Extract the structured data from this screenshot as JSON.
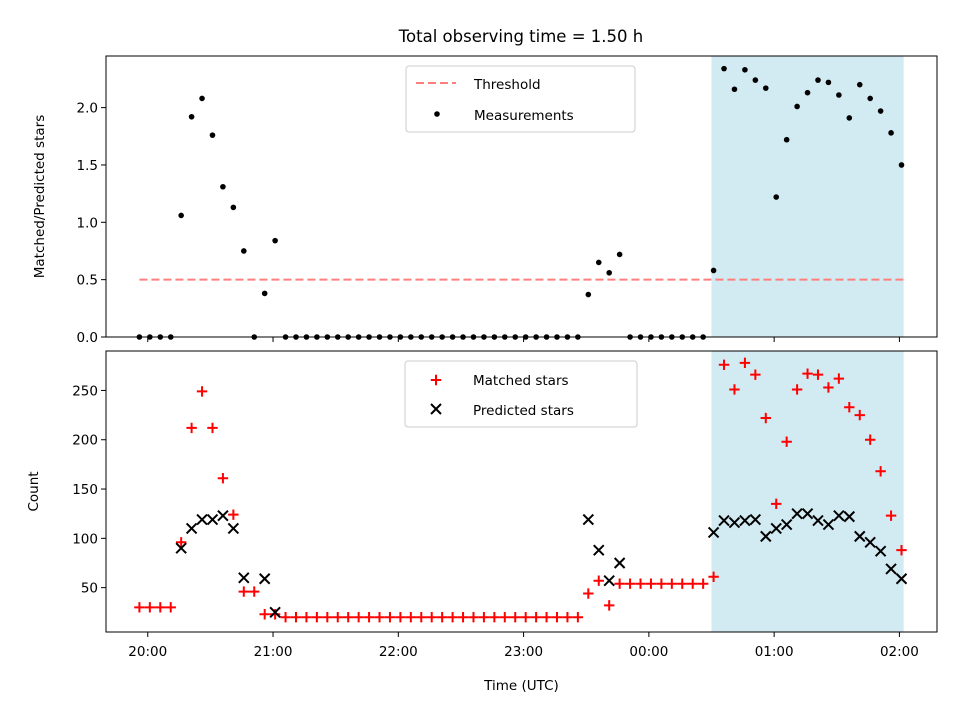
{
  "title": "Total observing time = 1.50 h",
  "colors": {
    "threshold": "#ff7f7f",
    "measurement": "#000000",
    "matched": "#ff0000",
    "predicted": "#000000",
    "shade": "#add8e6"
  },
  "chart_data": [
    {
      "type": "scatter",
      "ylabel": "Matched/Predicted stars",
      "xlim": [
        "19:40",
        "02:18"
      ],
      "ylim": [
        0,
        2.45
      ],
      "yticks": [
        "0.0",
        "0.5",
        "1.0",
        "1.5",
        "2.0"
      ],
      "shaded_region": [
        "00:30",
        "02:02"
      ],
      "legend": {
        "position": "top-center",
        "entries": [
          {
            "name": "Threshold",
            "style": "dashed-line"
          },
          {
            "name": "Measurements",
            "style": "dot"
          }
        ]
      },
      "threshold": {
        "name": "Threshold",
        "x": [
          "19:56",
          "02:02"
        ],
        "y": 0.5
      },
      "series": [
        {
          "name": "Measurements",
          "points": [
            [
              "19:56",
              0.0
            ],
            [
              "20:01",
              0.0
            ],
            [
              "20:06",
              0.0
            ],
            [
              "20:11",
              0.0
            ],
            [
              "20:16",
              1.06
            ],
            [
              "20:21",
              1.92
            ],
            [
              "20:26",
              2.08
            ],
            [
              "20:31",
              1.76
            ],
            [
              "20:36",
              1.31
            ],
            [
              "20:41",
              1.13
            ],
            [
              "20:46",
              0.75
            ],
            [
              "20:51",
              0.0
            ],
            [
              "20:56",
              0.38
            ],
            [
              "21:01",
              0.84
            ],
            [
              "21:06",
              0.0
            ],
            [
              "21:11",
              0.0
            ],
            [
              "21:16",
              0.0
            ],
            [
              "21:21",
              0.0
            ],
            [
              "21:26",
              0.0
            ],
            [
              "21:31",
              0.0
            ],
            [
              "21:36",
              0.0
            ],
            [
              "21:41",
              0.0
            ],
            [
              "21:46",
              0.0
            ],
            [
              "21:51",
              0.0
            ],
            [
              "21:56",
              0.0
            ],
            [
              "22:01",
              0.0
            ],
            [
              "22:06",
              0.0
            ],
            [
              "22:11",
              0.0
            ],
            [
              "22:16",
              0.0
            ],
            [
              "22:21",
              0.0
            ],
            [
              "22:26",
              0.0
            ],
            [
              "22:31",
              0.0
            ],
            [
              "22:36",
              0.0
            ],
            [
              "22:41",
              0.0
            ],
            [
              "22:46",
              0.0
            ],
            [
              "22:51",
              0.0
            ],
            [
              "22:56",
              0.0
            ],
            [
              "23:01",
              0.0
            ],
            [
              "23:06",
              0.0
            ],
            [
              "23:11",
              0.0
            ],
            [
              "23:16",
              0.0
            ],
            [
              "23:21",
              0.0
            ],
            [
              "23:26",
              0.0
            ],
            [
              "23:31",
              0.37
            ],
            [
              "23:36",
              0.65
            ],
            [
              "23:41",
              0.56
            ],
            [
              "23:46",
              0.72
            ],
            [
              "23:51",
              0.0
            ],
            [
              "23:56",
              0.0
            ],
            [
              "00:01",
              0.0
            ],
            [
              "00:06",
              0.0
            ],
            [
              "00:11",
              0.0
            ],
            [
              "00:16",
              0.0
            ],
            [
              "00:21",
              0.0
            ],
            [
              "00:26",
              0.0
            ],
            [
              "00:31",
              0.58
            ],
            [
              "00:36",
              2.34
            ],
            [
              "00:41",
              2.16
            ],
            [
              "00:46",
              2.33
            ],
            [
              "00:51",
              2.24
            ],
            [
              "00:56",
              2.17
            ],
            [
              "01:01",
              1.22
            ],
            [
              "01:06",
              1.72
            ],
            [
              "01:11",
              2.01
            ],
            [
              "01:16",
              2.13
            ],
            [
              "01:21",
              2.24
            ],
            [
              "01:26",
              2.22
            ],
            [
              "01:31",
              2.11
            ],
            [
              "01:36",
              1.91
            ],
            [
              "01:41",
              2.2
            ],
            [
              "01:46",
              2.08
            ],
            [
              "01:51",
              1.97
            ],
            [
              "01:56",
              1.78
            ],
            [
              "02:01",
              1.5
            ]
          ]
        }
      ]
    },
    {
      "type": "scatter",
      "xlabel": "Time (UTC)",
      "ylabel": "Count",
      "xlim": [
        "19:40",
        "02:18"
      ],
      "ylim": [
        5,
        290
      ],
      "xticks": [
        "20:00",
        "21:00",
        "22:00",
        "23:00",
        "00:00",
        "01:00",
        "02:00"
      ],
      "yticks": [
        "50",
        "100",
        "150",
        "200",
        "250"
      ],
      "shaded_region": [
        "00:30",
        "02:02"
      ],
      "legend": {
        "position": "top-center",
        "entries": [
          {
            "name": "Matched stars",
            "style": "plus"
          },
          {
            "name": "Predicted stars",
            "style": "cross"
          }
        ]
      },
      "series": [
        {
          "name": "Matched stars",
          "points": [
            [
              "19:56",
              30
            ],
            [
              "20:01",
              30
            ],
            [
              "20:06",
              30
            ],
            [
              "20:11",
              30
            ],
            [
              "20:16",
              96
            ],
            [
              "20:21",
              212
            ],
            [
              "20:26",
              249
            ],
            [
              "20:31",
              212
            ],
            [
              "20:36",
              161
            ],
            [
              "20:41",
              124
            ],
            [
              "20:46",
              46
            ],
            [
              "20:51",
              46
            ],
            [
              "20:56",
              23
            ],
            [
              "21:01",
              23
            ],
            [
              "21:06",
              20
            ],
            [
              "21:11",
              20
            ],
            [
              "21:16",
              20
            ],
            [
              "21:21",
              20
            ],
            [
              "21:26",
              20
            ],
            [
              "21:31",
              20
            ],
            [
              "21:36",
              20
            ],
            [
              "21:41",
              20
            ],
            [
              "21:46",
              20
            ],
            [
              "21:51",
              20
            ],
            [
              "21:56",
              20
            ],
            [
              "22:01",
              20
            ],
            [
              "22:06",
              20
            ],
            [
              "22:11",
              20
            ],
            [
              "22:16",
              20
            ],
            [
              "22:21",
              20
            ],
            [
              "22:26",
              20
            ],
            [
              "22:31",
              20
            ],
            [
              "22:36",
              20
            ],
            [
              "22:41",
              20
            ],
            [
              "22:46",
              20
            ],
            [
              "22:51",
              20
            ],
            [
              "22:56",
              20
            ],
            [
              "23:01",
              20
            ],
            [
              "23:06",
              20
            ],
            [
              "23:11",
              20
            ],
            [
              "23:16",
              20
            ],
            [
              "23:21",
              20
            ],
            [
              "23:26",
              20
            ],
            [
              "23:31",
              44
            ],
            [
              "23:36",
              57
            ],
            [
              "23:41",
              32
            ],
            [
              "23:46",
              54
            ],
            [
              "23:51",
              54
            ],
            [
              "23:56",
              54
            ],
            [
              "00:01",
              54
            ],
            [
              "00:06",
              54
            ],
            [
              "00:11",
              54
            ],
            [
              "00:16",
              54
            ],
            [
              "00:21",
              54
            ],
            [
              "00:26",
              54
            ],
            [
              "00:31",
              61
            ],
            [
              "00:36",
              276
            ],
            [
              "00:41",
              251
            ],
            [
              "00:46",
              278
            ],
            [
              "00:51",
              266
            ],
            [
              "00:56",
              222
            ],
            [
              "01:01",
              135
            ],
            [
              "01:06",
              198
            ],
            [
              "01:11",
              251
            ],
            [
              "01:16",
              267
            ],
            [
              "01:21",
              266
            ],
            [
              "01:26",
              253
            ],
            [
              "01:31",
              262
            ],
            [
              "01:36",
              233
            ],
            [
              "01:41",
              225
            ],
            [
              "01:46",
              200
            ],
            [
              "01:51",
              168
            ],
            [
              "01:56",
              123
            ],
            [
              "02:01",
              88
            ]
          ]
        },
        {
          "name": "Predicted stars",
          "points": [
            [
              "20:16",
              90
            ],
            [
              "20:21",
              110
            ],
            [
              "20:26",
              119
            ],
            [
              "20:31",
              119
            ],
            [
              "20:36",
              123
            ],
            [
              "20:41",
              110
            ],
            [
              "20:46",
              60
            ],
            [
              "20:56",
              59
            ],
            [
              "21:01",
              25
            ],
            [
              "23:31",
              119
            ],
            [
              "23:36",
              88
            ],
            [
              "23:41",
              57
            ],
            [
              "23:46",
              75
            ],
            [
              "00:31",
              106
            ],
            [
              "00:36",
              118
            ],
            [
              "00:41",
              116
            ],
            [
              "00:46",
              118
            ],
            [
              "00:51",
              119
            ],
            [
              "00:56",
              102
            ],
            [
              "01:01",
              110
            ],
            [
              "01:06",
              114
            ],
            [
              "01:11",
              125
            ],
            [
              "01:16",
              125
            ],
            [
              "01:21",
              118
            ],
            [
              "01:26",
              114
            ],
            [
              "01:31",
              123
            ],
            [
              "01:36",
              122
            ],
            [
              "01:41",
              102
            ],
            [
              "01:46",
              96
            ],
            [
              "01:51",
              87
            ],
            [
              "01:56",
              69
            ],
            [
              "02:01",
              59
            ]
          ]
        }
      ]
    }
  ]
}
